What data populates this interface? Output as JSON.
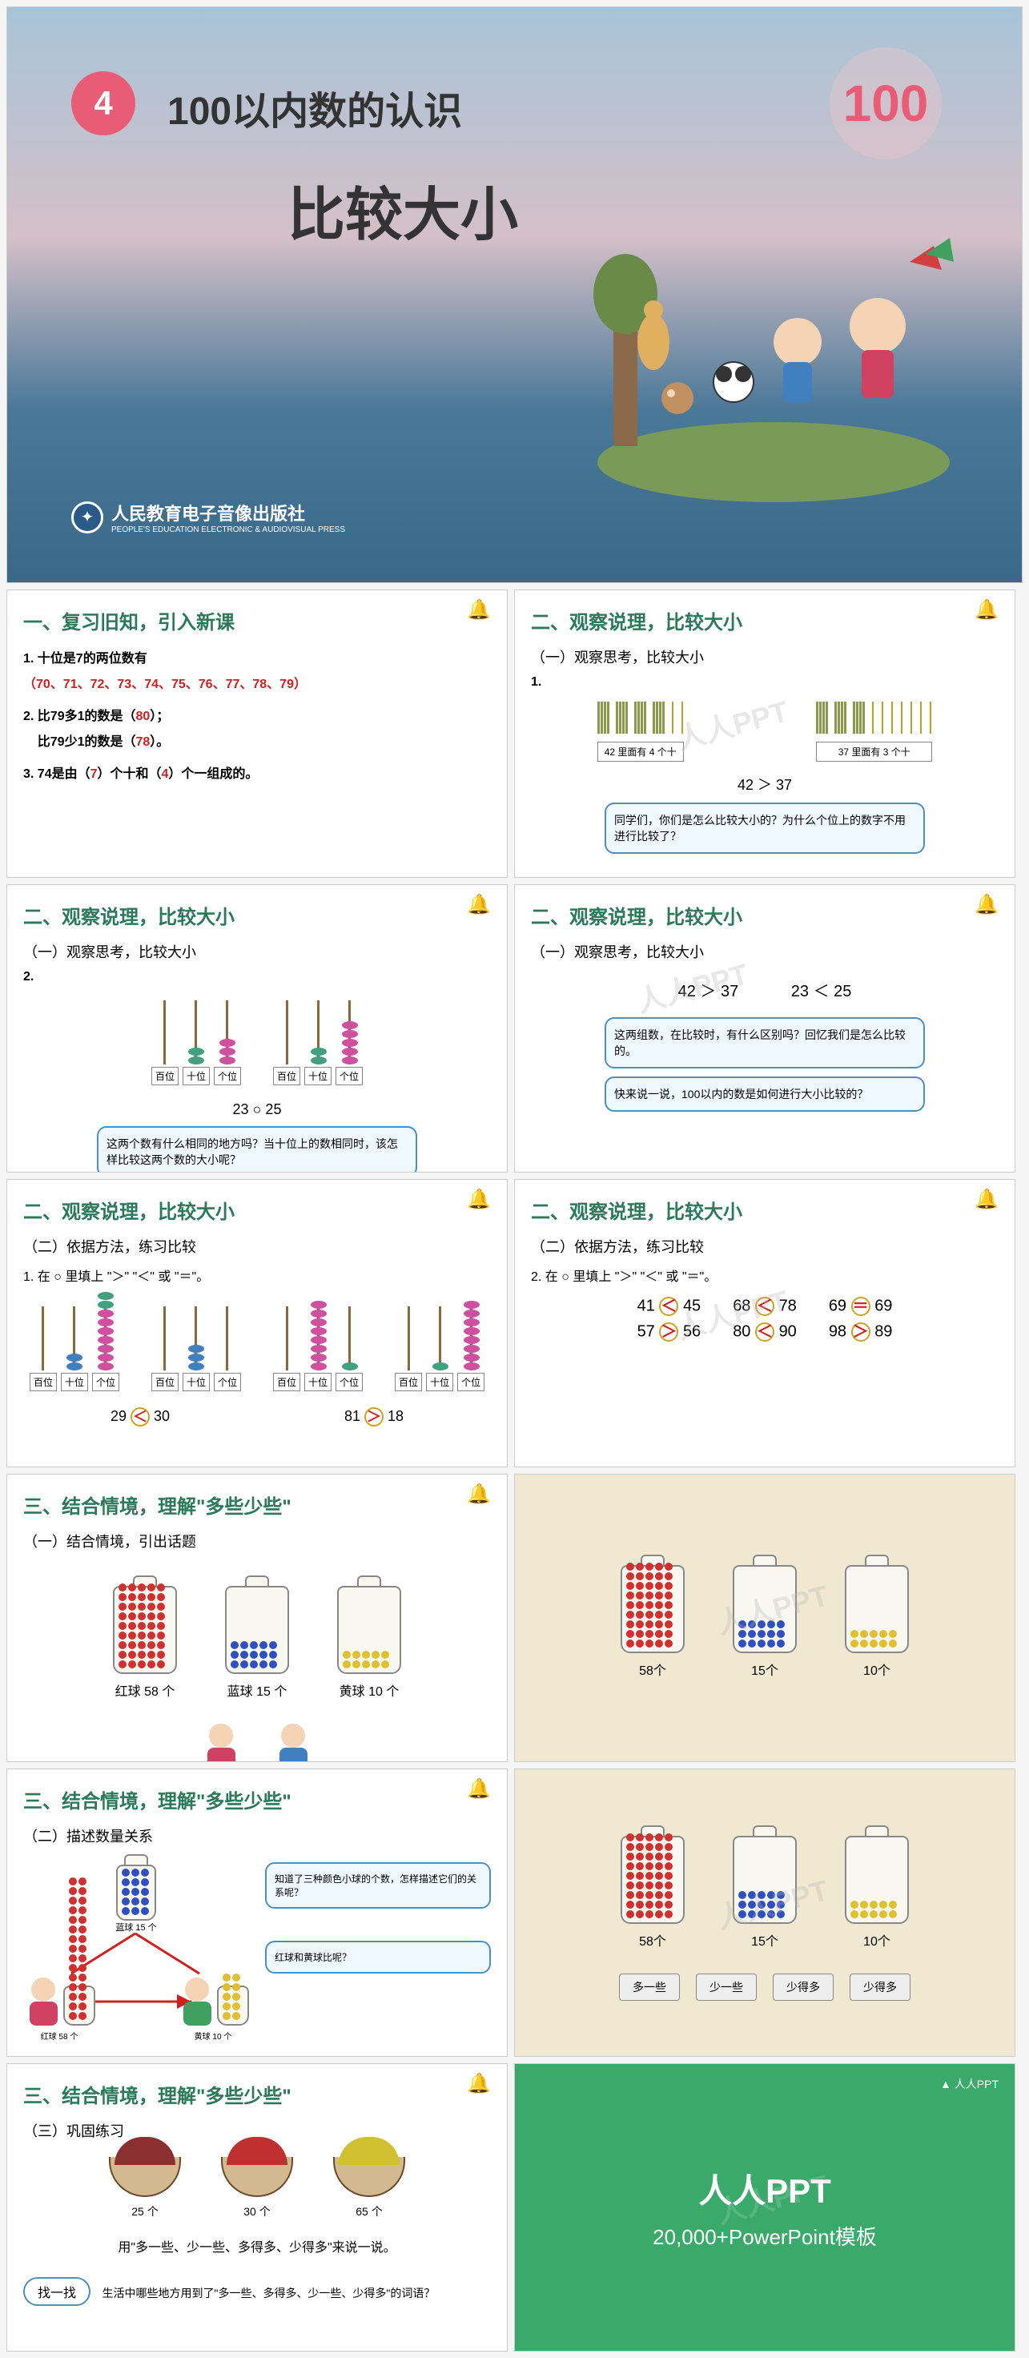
{
  "hero": {
    "badge_number": "4",
    "title_line1": "100以内数的认识",
    "title_line2": "比较大小",
    "big_number": "100",
    "publisher": "人民教育电子音像出版社",
    "publisher_en": "PEOPLE'S EDUCATION ELECTRONIC & AUDIOVISUAL PRESS"
  },
  "slide1": {
    "heading": "一、复习旧知，引入新课",
    "item1_label": "1. 十位是7的两位数有",
    "item1_numbers": "（70、71、72、73、74、75、76、77、78、79）",
    "item2_line1": "2. 比79多1的数是（",
    "item2_val1": "80",
    "item2_line1_end": "）；",
    "item2_line2": "比79少1的数是（",
    "item2_val2": "78",
    "item2_line2_end": "）。",
    "item3_prefix": "3. 74是由（",
    "item3_val1": "7",
    "item3_mid": "）个十和（",
    "item3_val2": "4",
    "item3_suffix": "）个一组成的。"
  },
  "slide2": {
    "heading": "二、观察说理，比较大小",
    "subheading": "（一）观察思考，比较大小",
    "number": "1.",
    "box1": "42 里面有 4 个十",
    "box2": "37 里面有 3 个十",
    "comparison": "42 ＞ 37",
    "speech": "同学们，你们是怎么比较大小的？为什么个位上的数字不用进行比较了？"
  },
  "slide3": {
    "heading": "二、观察说理，比较大小",
    "subheading": "（一）观察思考，比较大小",
    "number": "2.",
    "abacus1_labels": [
      "百位",
      "十位",
      "个位"
    ],
    "abacus2_labels": [
      "百位",
      "十位",
      "个位"
    ],
    "comparison_text": "23 ○ 25",
    "speech": "这两个数有什么相同的地方吗？当十位上的数相同时，该怎样比较这两个数的大小呢？"
  },
  "slide4": {
    "heading": "二、观察说理，比较大小",
    "subheading": "（一）观察思考，比较大小",
    "comp1": "42 ＞ 37",
    "comp2": "23 ＜ 25",
    "speech1": "这两组数，在比较时，有什么区别吗？回忆我们是怎么比较的。",
    "speech2": "快来说一说，100以内的数是如何进行大小比较的？"
  },
  "slide5": {
    "heading": "二、观察说理，比较大小",
    "subheading": "（二）依据方法，练习比较",
    "instruction": "1. 在 ○ 里填上 \"＞\" \"＜\" 或 \"＝\"。",
    "comp1_left": "29",
    "comp1_sym": "＜",
    "comp1_right": "30",
    "comp2_left": "81",
    "comp2_sym": "＞",
    "comp2_right": "18"
  },
  "slide6": {
    "heading": "二、观察说理，比较大小",
    "subheading": "（二）依据方法，练习比较",
    "instruction": "2. 在 ○ 里填上 \"＞\" \"＜\" 或 \"＝\"。",
    "rows": [
      {
        "a": "41",
        "s1": "＜",
        "b": "45",
        "c": "68",
        "s2": "＜",
        "d": "78",
        "e": "69",
        "s3": "＝",
        "f": "69"
      },
      {
        "a": "57",
        "s1": "＞",
        "b": "56",
        "c": "80",
        "s2": "＜",
        "d": "90",
        "e": "98",
        "s3": "＞",
        "f": "89"
      }
    ]
  },
  "slide7": {
    "heading": "三、结合情境，理解\"多些少些\"",
    "subheading": "（一）结合情境，引出话题",
    "jar1_label": "红球 58 个",
    "jar2_label": "蓝球 15 个",
    "jar3_label": "黄球 10 个"
  },
  "slide8": {
    "jar1": "58个",
    "jar2": "15个",
    "jar3": "10个"
  },
  "slide9": {
    "heading": "三、结合情境，理解\"多些少些\"",
    "subheading": "（二）描述数量关系",
    "label_blue": "蓝球 15 个",
    "label_red": "红球 58 个",
    "label_yellow": "黄球 10 个",
    "speech1": "知道了三种颜色小球的个数，怎样描述它们的关系呢？",
    "speech2": "红球和黄球比呢？"
  },
  "slide10": {
    "jar1": "58个",
    "jar2": "15个",
    "jar3": "10个",
    "btn1": "多一些",
    "btn2": "少一些",
    "btn3": "少得多",
    "btn4": "少得多"
  },
  "slide11": {
    "heading": "三、结合情境，理解\"多些少些\"",
    "subheading": "（三）巩固练习",
    "bowl1": "25 个",
    "bowl2": "30 个",
    "bowl3": "65 个",
    "instruction": "用\"多一些、少一些、多得多、少得多\"来说一说。",
    "find_label": "找一找",
    "find_text": "生活中哪些地方用到了\"多一些、多得多、少一些、少得多\"的词语？"
  },
  "slide12": {
    "logo": "人人PPT",
    "title": "人人PPT",
    "subtitle": "20,000+PowerPoint模板"
  },
  "colors": {
    "hero_badge": "#e85d75",
    "heading_green": "#2a7a5a",
    "red": "#d02020",
    "blue": "#2060c0",
    "ball_red": "#d03030",
    "ball_blue": "#3050c0",
    "ball_yellow": "#e0c030",
    "cream": "#f0e8d0",
    "green_slide": "#3aaa6a"
  },
  "watermark_text": "人人PPT"
}
